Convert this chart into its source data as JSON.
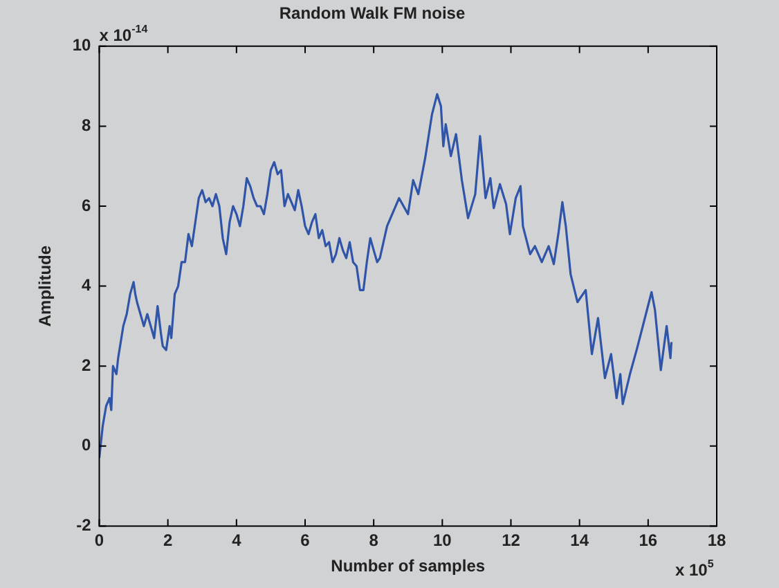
{
  "chart_data": {
    "type": "line",
    "title": "Random Walk FM noise",
    "xlabel": "Number of samples",
    "ylabel": "Amplitude",
    "annotations": [
      "x 10$^{-14}$",
      "x 10$^{5}$"
    ],
    "xlim": [
      0,
      18
    ],
    "xticks": [
      0,
      2,
      4,
      6,
      8,
      10,
      12,
      14,
      16,
      18
    ],
    "ylim": [
      -2,
      10
    ],
    "yticks": [
      -2,
      0,
      2,
      4,
      6,
      8,
      10
    ],
    "grid": false,
    "legend": false,
    "marker": "none",
    "line_style": "solid",
    "series": [
      {
        "color": "#2f54a8",
        "x": [
          0,
          0.1,
          0.2,
          0.3,
          0.35,
          0.4,
          0.5,
          0.55,
          0.7,
          0.8,
          0.9,
          1.0,
          1.05,
          1.1,
          1.2,
          1.3,
          1.4,
          1.5,
          1.6,
          1.7,
          1.8,
          1.85,
          1.95,
          2.05,
          2.1,
          2.2,
          2.3,
          2.4,
          2.5,
          2.6,
          2.7,
          2.8,
          2.9,
          3.0,
          3.1,
          3.2,
          3.3,
          3.4,
          3.5,
          3.6,
          3.7,
          3.8,
          3.9,
          4.0,
          4.1,
          4.2,
          4.3,
          4.4,
          4.5,
          4.6,
          4.7,
          4.8,
          4.9,
          5.0,
          5.1,
          5.2,
          5.3,
          5.4,
          5.5,
          5.6,
          5.7,
          5.8,
          5.9,
          6.0,
          6.1,
          6.2,
          6.3,
          6.4,
          6.5,
          6.6,
          6.7,
          6.8,
          6.9,
          7.0,
          7.1,
          7.2,
          7.3,
          7.4,
          7.5,
          7.6,
          7.7,
          7.8,
          7.9,
          8.0,
          8.1,
          8.18,
          8.39,
          8.74,
          9.0,
          9.15,
          9.3,
          9.5,
          9.7,
          9.85,
          9.96,
          10.03,
          10.1,
          10.25,
          10.4,
          10.57,
          10.75,
          10.96,
          11.1,
          11.26,
          11.4,
          11.5,
          11.68,
          11.86,
          11.97,
          12.14,
          12.28,
          12.35,
          12.56,
          12.7,
          12.9,
          13.1,
          13.25,
          13.39,
          13.5,
          13.6,
          13.74,
          13.94,
          14.18,
          14.36,
          14.54,
          14.74,
          14.92,
          15.08,
          15.19,
          15.26,
          15.47,
          15.68,
          15.89,
          16.1,
          16.2,
          16.37,
          16.54,
          16.65,
          16.68
        ],
        "values": [
          -0.3,
          0.5,
          1.0,
          1.2,
          0.9,
          2.0,
          1.8,
          2.2,
          3.0,
          3.3,
          3.8,
          4.1,
          3.8,
          3.6,
          3.3,
          3.0,
          3.3,
          3.0,
          2.7,
          3.5,
          2.8,
          2.5,
          2.4,
          3.0,
          2.7,
          3.8,
          4.0,
          4.6,
          4.6,
          5.3,
          5.0,
          5.6,
          6.2,
          6.4,
          6.1,
          6.2,
          6.0,
          6.3,
          6.0,
          5.2,
          4.8,
          5.6,
          6.0,
          5.8,
          5.5,
          6.0,
          6.7,
          6.5,
          6.2,
          6.0,
          6.0,
          5.8,
          6.3,
          6.9,
          7.1,
          6.8,
          6.9,
          6.0,
          6.3,
          6.1,
          5.9,
          6.4,
          6.0,
          5.5,
          5.3,
          5.6,
          5.8,
          5.2,
          5.4,
          5.0,
          5.1,
          4.6,
          4.8,
          5.2,
          4.9,
          4.7,
          5.1,
          4.6,
          4.5,
          3.9,
          3.9,
          4.6,
          5.2,
          4.9,
          4.6,
          4.7,
          5.5,
          6.2,
          5.8,
          6.65,
          6.3,
          7.2,
          8.3,
          8.8,
          8.5,
          7.5,
          8.05,
          7.25,
          7.8,
          6.65,
          5.7,
          6.3,
          7.75,
          6.2,
          6.7,
          5.95,
          6.55,
          6.05,
          5.3,
          6.2,
          6.5,
          5.5,
          4.8,
          5.0,
          4.6,
          5.0,
          4.55,
          5.35,
          6.1,
          5.5,
          4.3,
          3.6,
          3.9,
          2.3,
          3.2,
          1.7,
          2.3,
          1.2,
          1.8,
          1.05,
          1.8,
          2.45,
          3.15,
          3.85,
          3.4,
          1.9,
          3.0,
          2.2,
          2.6
        ]
      }
    ]
  }
}
